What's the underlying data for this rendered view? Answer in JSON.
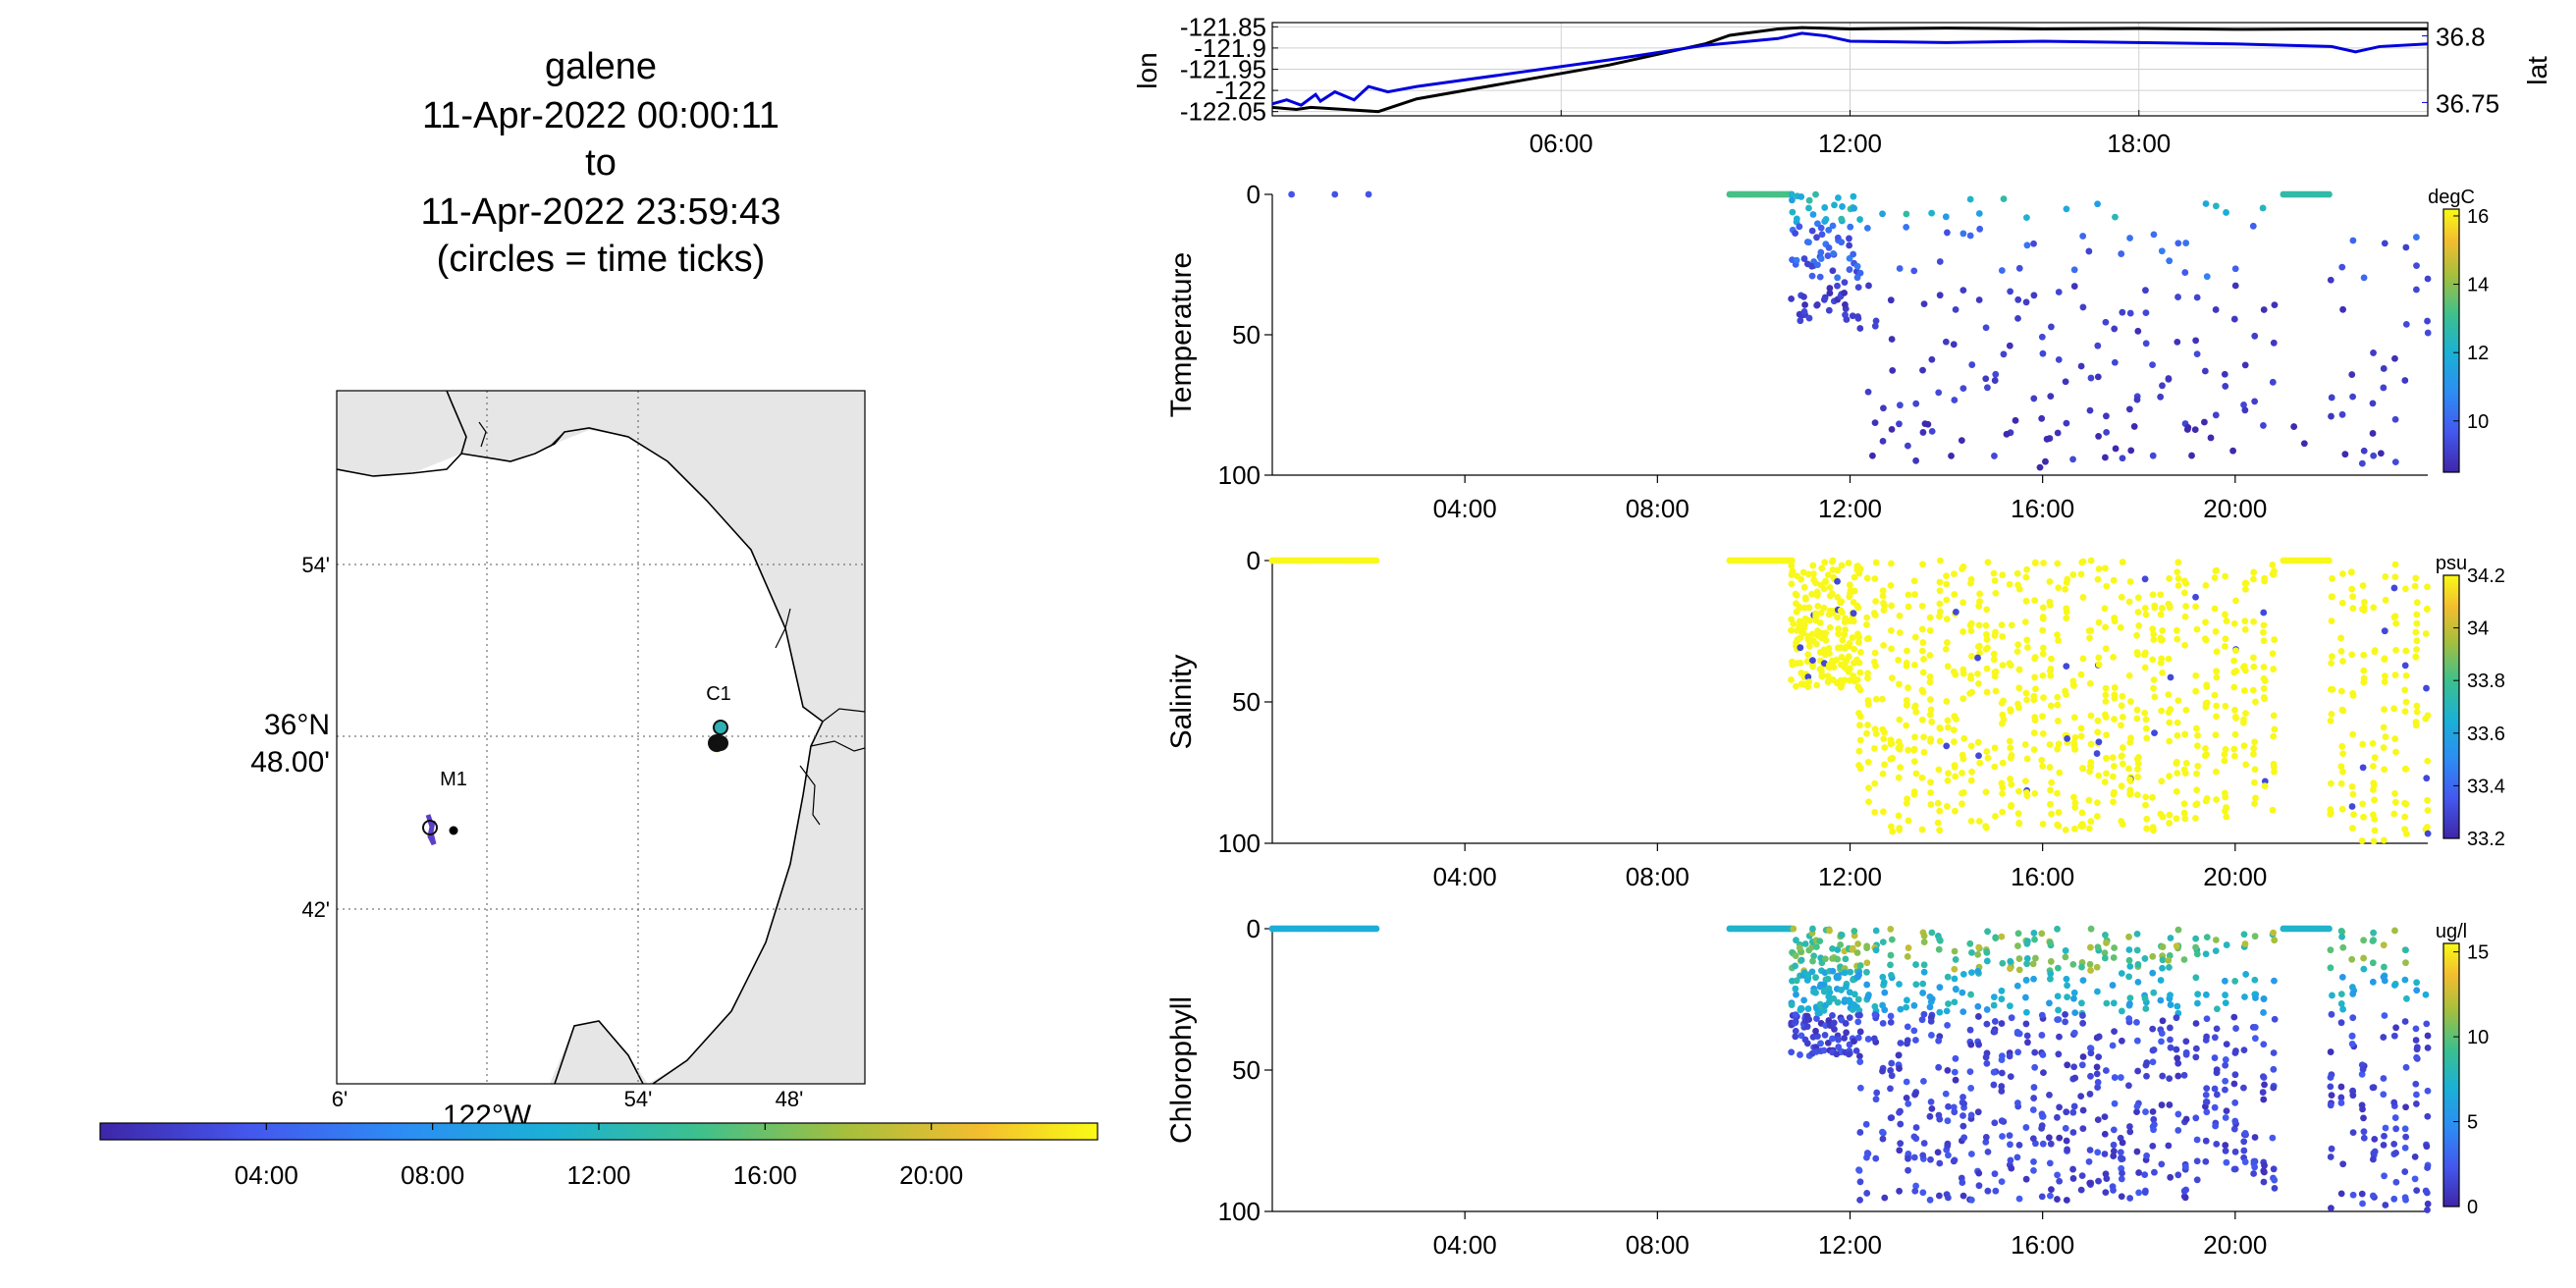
{
  "header": {
    "vehicle": "galene",
    "start": "11-Apr-2022 00:00:11",
    "sep": "to",
    "end": "11-Apr-2022 23:59:43",
    "note": "(circles = time ticks)"
  },
  "map": {
    "lat_labels": [
      "54'",
      "42'"
    ],
    "lat_center": [
      "36°N",
      "48.00'"
    ],
    "lon_labels": [
      "6'",
      "54'",
      "48'"
    ],
    "lon_center": "122°W",
    "stations": [
      {
        "name": "M1"
      },
      {
        "name": "C1"
      }
    ],
    "colors": {
      "land": "#e6e6e6",
      "water": "#ffffff",
      "coast": "#000000"
    }
  },
  "time_colorbar": {
    "ticks": [
      "04:00",
      "08:00",
      "12:00",
      "16:00",
      "20:00"
    ]
  },
  "colors": {
    "track_lon": "#000000",
    "track_lat": "#0000dd",
    "scatter_high": "#f8f81c"
  },
  "chart_data": [
    {
      "type": "line",
      "panel": "position",
      "ylabel": "lon",
      "y2label": "lat",
      "xticks": [
        "06:00",
        "12:00",
        "18:00"
      ],
      "yticks": [
        "-121.85",
        "-121.9",
        "-121.95",
        "-122",
        "-122.05"
      ],
      "y2ticks": [
        "36.8",
        "36.75"
      ],
      "xlim": [
        0,
        24
      ],
      "ylim": [
        -122.06,
        -121.84
      ],
      "y2lim": [
        36.74,
        36.81
      ],
      "series": [
        {
          "name": "lon",
          "x": [
            0,
            0.5,
            0.8,
            1.5,
            2.2,
            3,
            5,
            7,
            9,
            9.5,
            10.5,
            11,
            12,
            14,
            16,
            18,
            20,
            22,
            24
          ],
          "y": [
            -122.04,
            -122.045,
            -122.04,
            -122.045,
            -122.05,
            -122.02,
            -121.98,
            -121.94,
            -121.89,
            -121.87,
            -121.855,
            -121.852,
            -121.855,
            -121.853,
            -121.855,
            -121.854,
            -121.856,
            -121.855,
            -121.855
          ]
        },
        {
          "name": "lat",
          "x": [
            0,
            0.3,
            0.6,
            0.9,
            1.0,
            1.3,
            1.7,
            2.0,
            2.4,
            3,
            5,
            7,
            9,
            10.5,
            11,
            11.5,
            12,
            14,
            16,
            18,
            20,
            22,
            22.5,
            23,
            24
          ],
          "y": [
            36.749,
            36.752,
            36.748,
            36.756,
            36.751,
            36.758,
            36.752,
            36.762,
            36.758,
            36.762,
            36.772,
            36.782,
            36.793,
            36.798,
            36.802,
            36.8,
            36.796,
            36.795,
            36.796,
            36.795,
            36.794,
            36.792,
            36.788,
            36.792,
            36.794
          ]
        }
      ]
    },
    {
      "type": "scatter",
      "panel": "temperature",
      "ylabel": "Temperature",
      "unit": "degC",
      "xticks": [
        "04:00",
        "08:00",
        "12:00",
        "16:00",
        "20:00"
      ],
      "yticks": [
        "0",
        "50",
        "100"
      ],
      "cbticks": [
        "16",
        "14",
        "12",
        "10"
      ],
      "xlim": [
        0,
        24
      ],
      "ylim": [
        0,
        100
      ],
      "clim": [
        8.5,
        16.2
      ]
    },
    {
      "type": "scatter",
      "panel": "salinity",
      "ylabel": "Salinity",
      "unit": "psu",
      "xticks": [
        "04:00",
        "08:00",
        "12:00",
        "16:00",
        "20:00"
      ],
      "yticks": [
        "0",
        "50",
        "100"
      ],
      "cbticks": [
        "34.2",
        "34",
        "33.8",
        "33.6",
        "33.4",
        "33.2"
      ],
      "xlim": [
        0,
        24
      ],
      "ylim": [
        0,
        100
      ],
      "clim": [
        33.2,
        34.2
      ]
    },
    {
      "type": "scatter",
      "panel": "chlorophyll",
      "ylabel": "Chlorophyll",
      "unit": "ug/l",
      "xticks": [
        "04:00",
        "08:00",
        "12:00",
        "16:00",
        "20:00"
      ],
      "yticks": [
        "0",
        "50",
        "100"
      ],
      "cbticks": [
        "15",
        "10",
        "5",
        "0"
      ],
      "xlim": [
        0,
        24
      ],
      "ylim": [
        0,
        100
      ],
      "clim": [
        0,
        15.5
      ]
    }
  ]
}
